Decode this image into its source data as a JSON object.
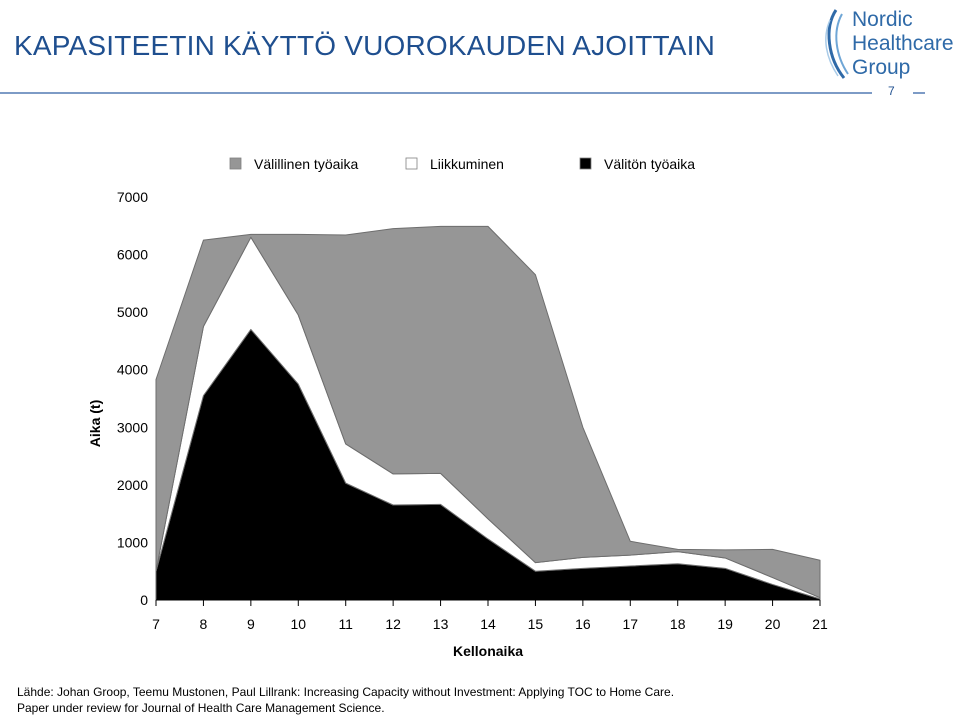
{
  "slide": {
    "title": "KAPASITEETIN KÄYTTÖ VUOROKAUDEN AJOITTAIN",
    "page_number": "7",
    "logo_lines": [
      "Nordic",
      "Healthcare",
      "Group"
    ],
    "brand_color": "#2f6aa8",
    "source_line_1": "Lähde: Johan Groop, Teemu Mustonen, Paul Lillrank: Increasing Capacity without Investment: Applying TOC to Home Care.",
    "source_line_2": "Paper under review for Journal of Health Care Management Science."
  },
  "chart_data": {
    "type": "area",
    "stacked": true,
    "xlabel": "Kellonaika",
    "ylabel": "Aika (t)",
    "x": [
      7,
      8,
      9,
      10,
      11,
      12,
      13,
      14,
      15,
      16,
      17,
      18,
      19,
      20,
      21
    ],
    "ylim": [
      0,
      7000
    ],
    "yticks": [
      0,
      1000,
      2000,
      3000,
      4000,
      5000,
      6000,
      7000
    ],
    "grid": false,
    "legend_position": "top",
    "series": [
      {
        "name": "Välitön työaika",
        "color": "#000000",
        "values": [
          500,
          3550,
          4700,
          3750,
          2030,
          1650,
          1660,
          1060,
          500,
          550,
          590,
          630,
          550,
          270,
          20
        ]
      },
      {
        "name": "Liikkuminen",
        "color": "#ffffff",
        "values": [
          0,
          1200,
          1600,
          1200,
          680,
          540,
          540,
          350,
          150,
          190,
          190,
          210,
          180,
          120,
          20
        ]
      },
      {
        "name": "Välillinen työaika",
        "color": "#969696",
        "values": [
          3330,
          1500,
          50,
          1400,
          3630,
          4260,
          4290,
          5080,
          5000,
          2260,
          240,
          40,
          140,
          490,
          650
        ]
      }
    ]
  }
}
